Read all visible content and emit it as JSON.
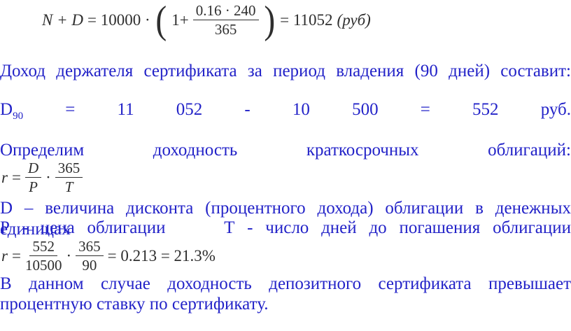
{
  "colors": {
    "page_bg": "#ffffff",
    "text_blue": "#2323c8",
    "formula_ink": "#2e2e2e"
  },
  "formulas": {
    "capital": {
      "vars": "N + D",
      "mid": "= 10000 ·",
      "open_paren": "(",
      "one_plus": "1+",
      "frac_num": "0.16 · 240",
      "frac_den": "365",
      "close_paren": ")",
      "result": "= 11052",
      "unit": "(руб)"
    },
    "yield_def": {
      "var": "r",
      "eq": "=",
      "frac1_num": "D",
      "frac1_den": "P",
      "dot": "·",
      "frac2_num": "365",
      "frac2_den": "T"
    },
    "yield_calc": {
      "var": "r",
      "eq": "=",
      "frac1_num": "552",
      "frac1_den": "10500",
      "dot": "·",
      "frac2_num": "365",
      "frac2_den": "90",
      "tail": "= 0.213 = 21.3%"
    }
  },
  "lines": {
    "income": "Доход держателя сертификата за период владения (90 дней) составит:",
    "d90": {
      "base": "D",
      "sub": "90",
      "rest": "= 11 052 - 10 500 = 552 руб."
    },
    "define_yield": "Определим доходность краткосрочных облигаций:",
    "discount_def": "D – величина дисконта (процентного дохода) облигации в денежных единицах",
    "price_part": "Р - цена облигации",
    "days_part": "Т - число дней до погашения облигации",
    "conclusion_1": "В данном случае доходность депозитного сертификата превышает",
    "conclusion_2": "процентную ставку по сертификату."
  }
}
